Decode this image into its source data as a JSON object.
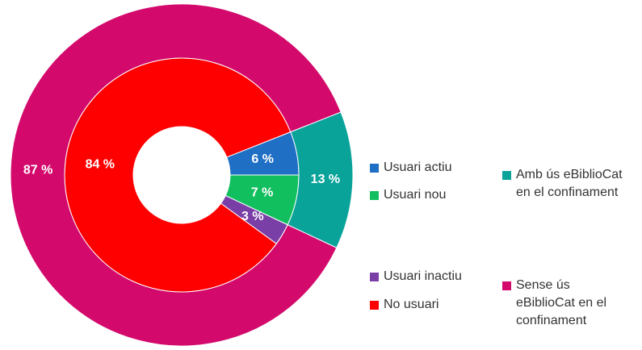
{
  "chart_data": {
    "type": "nested-donut",
    "start_angle": -21.6,
    "rings": [
      {
        "categories": [
          "Usuari actiu",
          "Usuari nou",
          "Usuari inactiu",
          "No usuari"
        ],
        "values": [
          6,
          7,
          3,
          84
        ],
        "value_labels": [
          "6 %",
          "7 %",
          "3 %",
          "84 %"
        ],
        "colors": [
          "#1f6fc5",
          "#12bf5e",
          "#7a3fa6",
          "#ff0000"
        ]
      },
      {
        "categories": [
          "Amb ús eBiblioCat en el confinament",
          "Sense ús eBiblioCat en el confinament"
        ],
        "values": [
          13,
          87
        ],
        "value_labels": [
          "13 %",
          "87 %"
        ],
        "colors": [
          "#0aa39a",
          "#d30a6c"
        ]
      }
    ]
  }
}
